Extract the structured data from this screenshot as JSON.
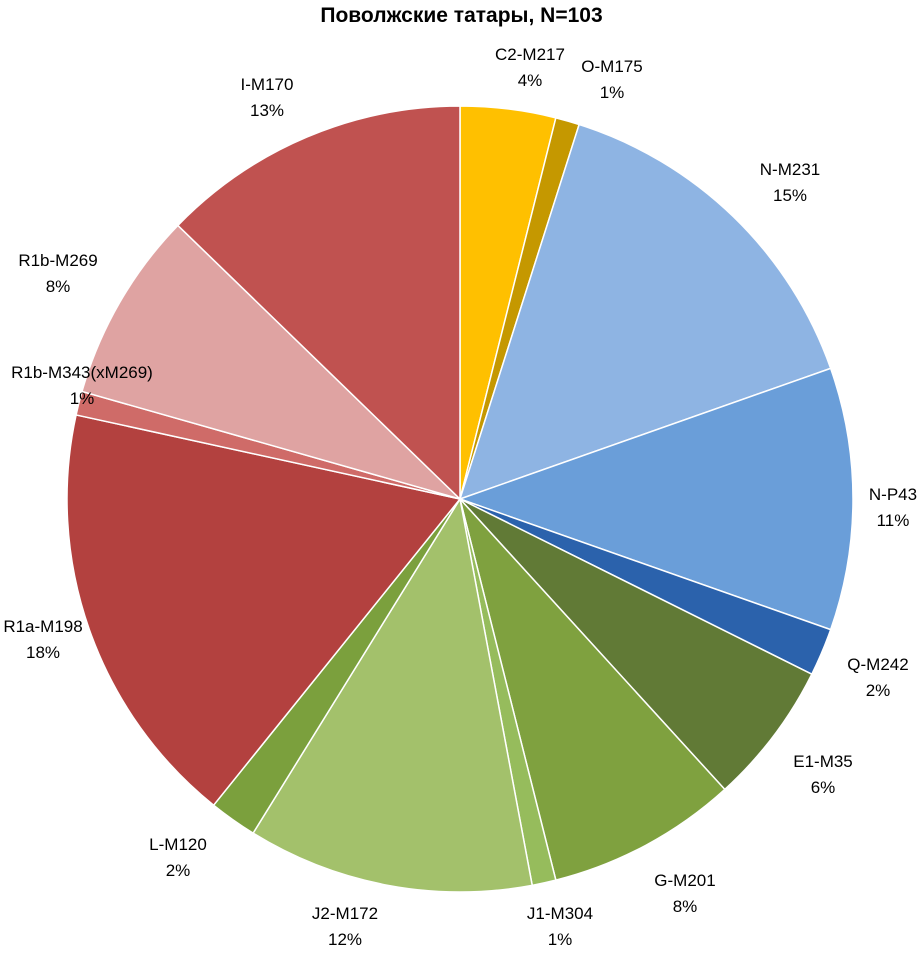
{
  "chart_data": {
    "type": "pie",
    "title": "Поволжские татары, N=103",
    "slices": [
      {
        "name": "C2-M217",
        "value": 4,
        "label": "4%",
        "color": "#FFC000"
      },
      {
        "name": "O-M175",
        "value": 1,
        "label": "1%",
        "color": "#C59800"
      },
      {
        "name": "N-M231",
        "value": 15,
        "label": "15%",
        "color": "#8EB4E3"
      },
      {
        "name": "N-P43",
        "value": 11,
        "label": "11%",
        "color": "#6A9ED9"
      },
      {
        "name": "Q-M242",
        "value": 2,
        "label": "2%",
        "color": "#2B62AC"
      },
      {
        "name": "E1-M35",
        "value": 6,
        "label": "6%",
        "color": "#617A36"
      },
      {
        "name": "G-M201",
        "value": 8,
        "label": "8%",
        "color": "#7FA13F"
      },
      {
        "name": "J1-M304",
        "value": 1,
        "label": "1%",
        "color": "#96BC5C"
      },
      {
        "name": "J2-M172",
        "value": 12,
        "label": "12%",
        "color": "#A3C16B"
      },
      {
        "name": "L-M120",
        "value": 2,
        "label": "2%",
        "color": "#7BA03D"
      },
      {
        "name": "R1a-M198",
        "value": 18,
        "label": "18%",
        "color": "#B3413F"
      },
      {
        "name": "R1b-M343(xM269)",
        "value": 1,
        "label": "1%",
        "color": "#CF6B68"
      },
      {
        "name": "R1b-M269",
        "value": 8,
        "label": "8%",
        "color": "#DFA3A2"
      },
      {
        "name": "I-M170",
        "value": 13,
        "label": "13%",
        "color": "#C05250"
      }
    ]
  }
}
